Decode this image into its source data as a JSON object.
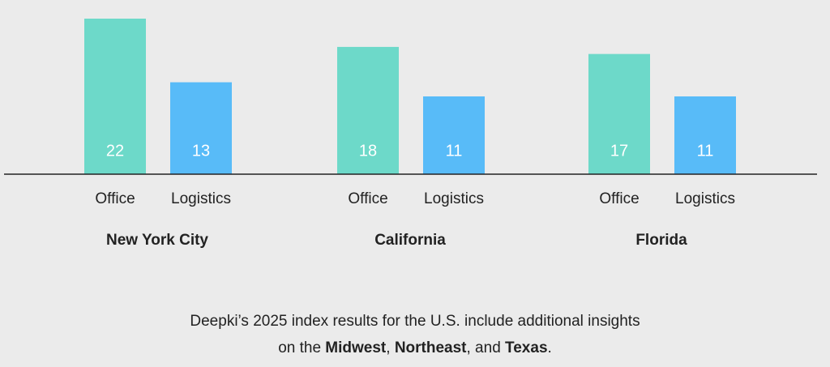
{
  "chart_data": {
    "type": "bar",
    "categories": [
      "New York City",
      "California",
      "Florida"
    ],
    "series": [
      {
        "name": "Office",
        "color": "#6dd9c9",
        "values": [
          22,
          18,
          17
        ]
      },
      {
        "name": "Logistics",
        "color": "#58bbf8",
        "values": [
          13,
          11,
          11
        ]
      }
    ],
    "note": [
      "Deepki’s 2025 index results for the U.S. include additional insights on the ",
      "Midwest",
      ", ",
      "Northeast",
      ", and ",
      "Texas",
      "."
    ]
  }
}
